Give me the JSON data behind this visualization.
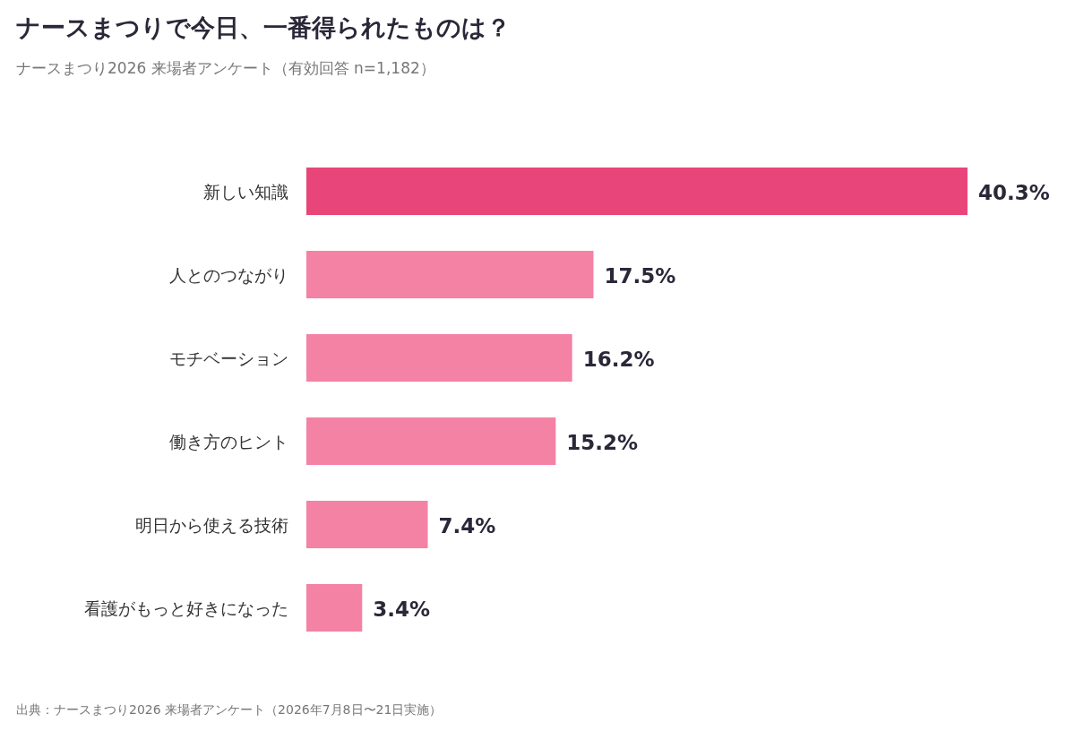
{
  "chart_data": {
    "type": "bar",
    "orientation": "horizontal",
    "title": "ナースまつりで今日、一番得られたものは？",
    "subtitle": "ナースまつり2026 来場者アンケート（有効回答 n=1,182）",
    "categories": [
      "新しい知識",
      "人とのつながり",
      "モチベーション",
      "働き方のヒント",
      "明日から使える技術",
      "看護がもっと好きになった"
    ],
    "values": [
      40.3,
      17.5,
      16.2,
      15.2,
      7.4,
      3.4
    ],
    "colors": [
      "#e8457a",
      "#f482a5",
      "#f482a5",
      "#f482a5",
      "#f482a5",
      "#f482a5"
    ],
    "value_labels": [
      "40.3%",
      "17.5%",
      "16.2%",
      "15.2%",
      "7.4%",
      "3.4%"
    ],
    "annotations": [
      "出典：ナースまつり2026 来場者アンケート（2026年7月8日〜21日実施）"
    ]
  }
}
